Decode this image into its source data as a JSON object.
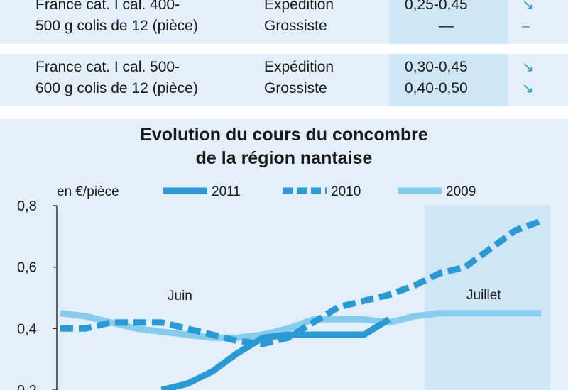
{
  "table": {
    "rows": [
      {
        "product": [
          "France cat. I cal. 400-",
          "500 g colis de 12 (pièce)"
        ],
        "stages": [
          "Expédition",
          "Grossiste"
        ],
        "prices": [
          "0,25-0,45",
          "—"
        ],
        "trends": [
          "↘",
          "–"
        ]
      },
      {
        "product": [
          "France cat. I cal. 500-",
          "600 g colis de 12 (pièce)"
        ],
        "stages": [
          "Expédition",
          "Grossiste"
        ],
        "prices": [
          "0,30-0,45",
          "0,40-0,50"
        ],
        "trends": [
          "↘",
          "↘"
        ]
      }
    ]
  },
  "chart_data": {
    "type": "line",
    "title": "Evolution du cours du concombre de la région nantaise",
    "title_lines": [
      "Evolution du cours du concombre",
      "de la région nantaise"
    ],
    "ylabel": "en €/pièce",
    "yticks": [
      "0,8",
      "0,6",
      "0,4",
      "0,2"
    ],
    "ylim": [
      0.2,
      0.8
    ],
    "annotations": [
      "Juin",
      "Juillet"
    ],
    "series": [
      {
        "name": "2011",
        "style": "solid",
        "color": "#2a9ad6",
        "x": [
          0,
          1,
          2,
          3,
          4,
          5,
          6,
          7,
          8,
          9
        ],
        "values": [
          0.2,
          0.22,
          0.26,
          0.32,
          0.37,
          0.38,
          0.38,
          0.38,
          0.38,
          0.43
        ]
      },
      {
        "name": "2010",
        "style": "dashed",
        "color": "#2a9ad6",
        "x": [
          0,
          1,
          2,
          3,
          4,
          5,
          6,
          7,
          8,
          9,
          10,
          11,
          12,
          13,
          14,
          15,
          16,
          17,
          18,
          19
        ],
        "values": [
          0.4,
          0.4,
          0.42,
          0.42,
          0.42,
          0.4,
          0.38,
          0.36,
          0.35,
          0.37,
          0.42,
          0.47,
          0.49,
          0.51,
          0.54,
          0.58,
          0.6,
          0.66,
          0.72,
          0.75
        ]
      },
      {
        "name": "2009",
        "style": "solid-light",
        "color": "#86ccee",
        "x": [
          0,
          1,
          2,
          3,
          4,
          5,
          6,
          7,
          8,
          9,
          10,
          11,
          12,
          13,
          14,
          15,
          16,
          17,
          18,
          19
        ],
        "values": [
          0.45,
          0.44,
          0.42,
          0.4,
          0.39,
          0.38,
          0.37,
          0.37,
          0.38,
          0.4,
          0.43,
          0.43,
          0.43,
          0.42,
          0.44,
          0.45,
          0.45,
          0.45,
          0.45,
          0.45
        ]
      }
    ],
    "colors": {
      "background": "#e3f0f9",
      "highlight": "#cfe6f6",
      "axis": "#333333"
    }
  }
}
